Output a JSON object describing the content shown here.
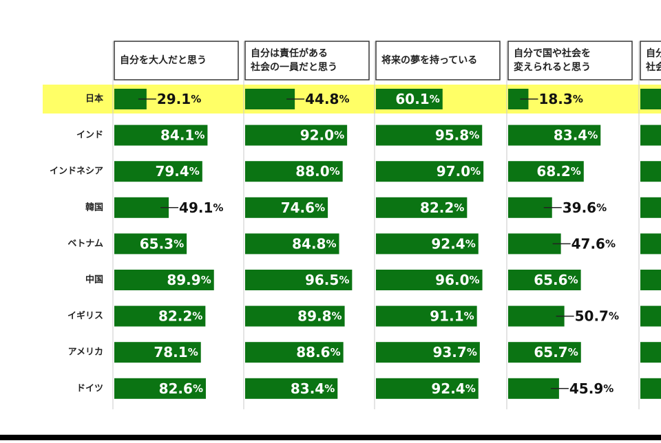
{
  "chart_data": {
    "type": "bar",
    "orientation": "horizontal",
    "value_suffix": "%",
    "highlight_category": "日本",
    "colors": {
      "bar": "#0b7413",
      "highlight": "#ffff66",
      "label_on_bar": "#ffffff",
      "label_outside": "#111111",
      "header_border": "#333333"
    },
    "categories": [
      "日本",
      "インド",
      "インドネシア",
      "韓国",
      "ベトナム",
      "中国",
      "イギリス",
      "アメリカ",
      "ドイツ"
    ],
    "series": [
      {
        "name": "自分を大人だと思う",
        "header_lines": [
          "自分を大人だと思う"
        ],
        "values": [
          29.1,
          84.1,
          79.4,
          49.1,
          65.3,
          89.9,
          82.2,
          78.1,
          82.6
        ]
      },
      {
        "name": "自分は責任がある社会の一員だと思う",
        "header_lines": [
          "自分は責任がある",
          "社会の一員だと思う"
        ],
        "values": [
          44.8,
          92.0,
          88.0,
          74.6,
          84.8,
          96.5,
          89.8,
          88.6,
          83.4
        ]
      },
      {
        "name": "将来の夢を持っている",
        "header_lines": [
          "将来の夢を持っている"
        ],
        "values": [
          60.1,
          95.8,
          97.0,
          82.2,
          92.4,
          96.0,
          91.1,
          93.7,
          92.4
        ]
      },
      {
        "name": "自分で国や社会を変えられると思う",
        "header_lines": [
          "自分で国や社会を",
          "変えられると思う"
        ],
        "values": [
          18.3,
          83.4,
          68.2,
          39.6,
          47.6,
          65.6,
          50.7,
          65.7,
          45.9
        ]
      },
      {
        "name": "自分…",
        "header_lines": [
          "自分",
          "社会"
        ],
        "values": [
          null,
          null,
          null,
          null,
          null,
          null,
          null,
          null,
          null
        ],
        "partial": true
      }
    ]
  }
}
